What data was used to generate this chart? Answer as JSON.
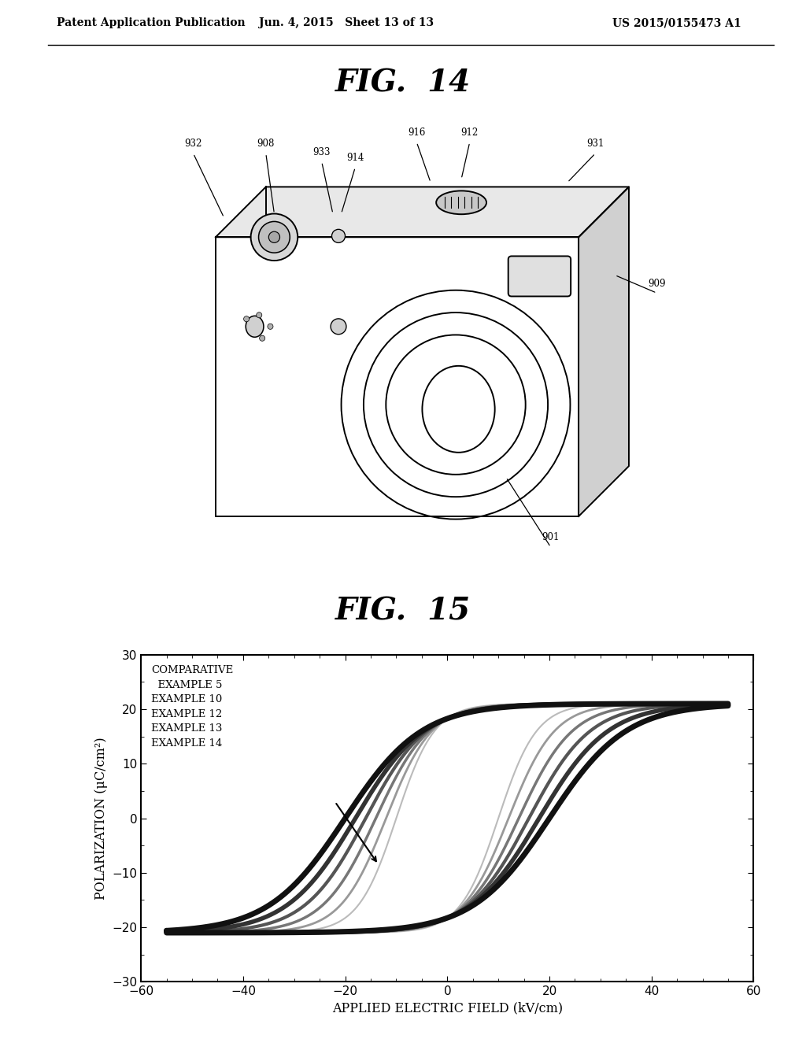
{
  "header_left": "Patent Application Publication",
  "header_mid": "Jun. 4, 2015   Sheet 13 of 13",
  "header_right": "US 2015/0155473 A1",
  "fig14_title": "FIG.  14",
  "fig15_title": "FIG.  15",
  "fig15_xlabel": "APPLIED ELECTRIC FIELD (kV/cm)",
  "fig15_ylabel": "POLARIZATION (μC/cm²)",
  "fig15_xlim": [
    -60,
    60
  ],
  "fig15_ylim": [
    -30,
    30
  ],
  "fig15_xticks": [
    -60,
    -40,
    -20,
    0,
    20,
    40,
    60
  ],
  "fig15_yticks": [
    -30,
    -20,
    -10,
    0,
    10,
    20,
    30
  ],
  "legend_line1": "COMPARATIVE",
  "legend_line2": "  EXAMPLE 5",
  "legend_line3": "EXAMPLE 10",
  "legend_line4": "EXAMPLE 12",
  "legend_line5": "EXAMPLE 13",
  "legend_line6": "EXAMPLE 14",
  "curve_colors": [
    "#111111",
    "#333333",
    "#555555",
    "#777777",
    "#999999",
    "#bbbbbb"
  ],
  "curve_linewidths": [
    5.0,
    4.0,
    3.0,
    2.5,
    2.0,
    1.5
  ],
  "coercive_fields": [
    20,
    18,
    16,
    14,
    12,
    10
  ],
  "max_pol": 21.0,
  "E_max": 55,
  "background_color": "#ffffff"
}
